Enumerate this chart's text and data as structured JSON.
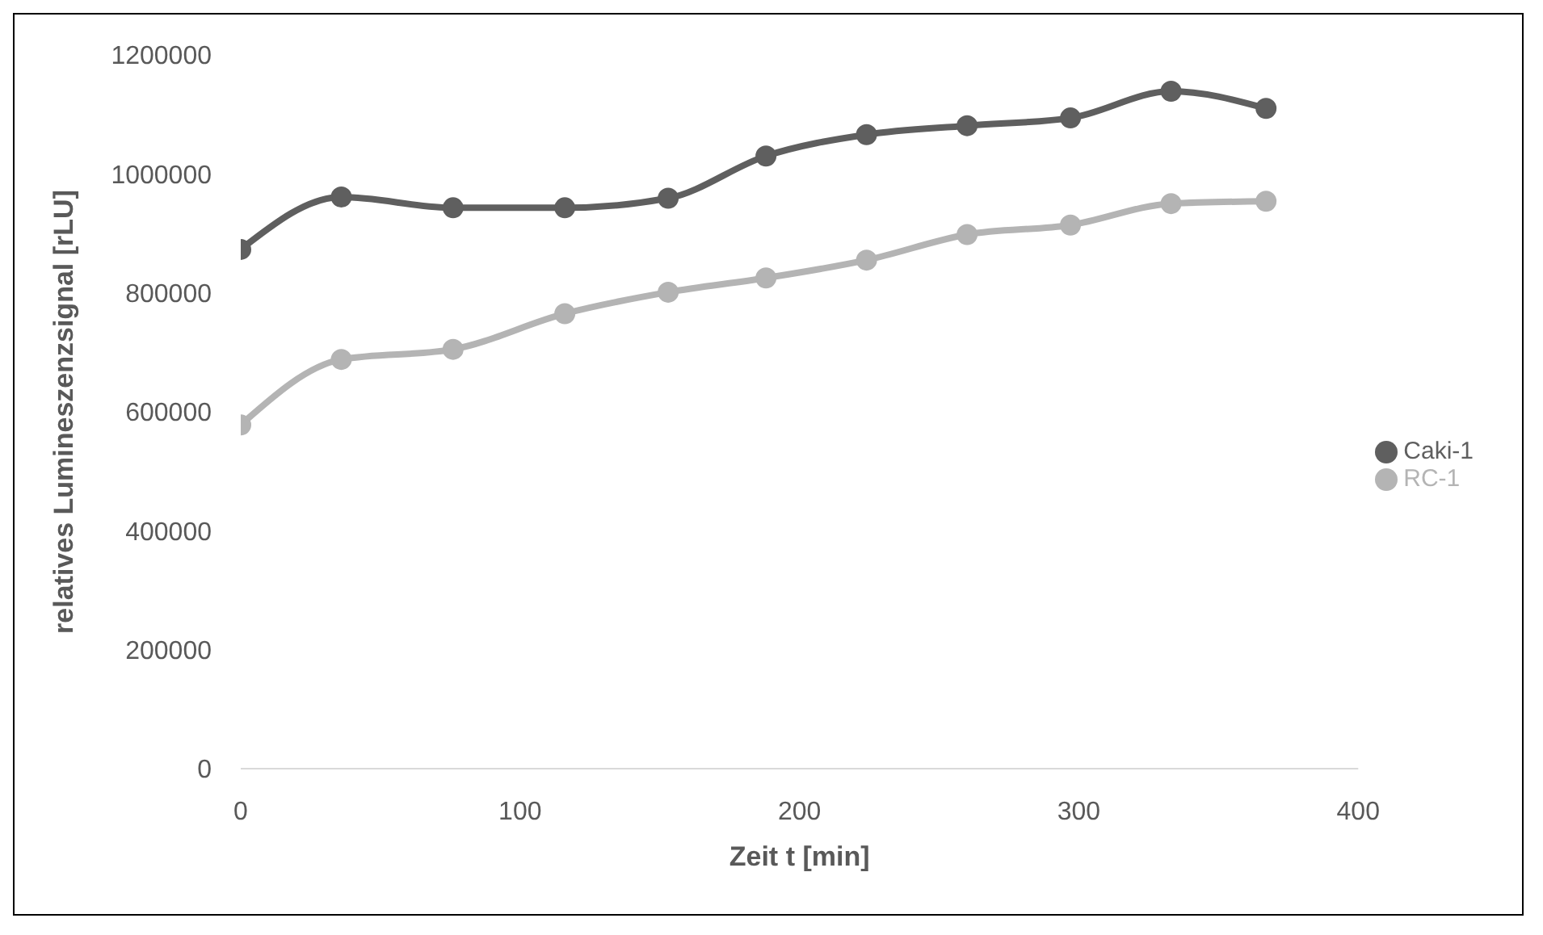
{
  "chart_data": {
    "type": "line",
    "xlabel": "Zeit t [min]",
    "ylabel": "relatives Lumineszenzsignal [rLU]",
    "x": [
      0,
      36,
      76,
      116,
      153,
      188,
      224,
      260,
      297,
      333,
      367
    ],
    "series": [
      {
        "name": "Caki-1",
        "color": "#5f5f5f",
        "values": [
          873000,
          961000,
          943000,
          943000,
          959000,
          1030000,
          1066000,
          1081000,
          1094000,
          1139000,
          1110000
        ]
      },
      {
        "name": "RC-1",
        "color": "#b4b4b4",
        "values": [
          578000,
          688000,
          705000,
          765000,
          801000,
          825000,
          855000,
          898000,
          914000,
          950000,
          954000
        ]
      }
    ],
    "xlim": [
      0,
      400
    ],
    "xticks": [
      0,
      100,
      200,
      300,
      400
    ],
    "ylim": [
      0,
      1200000
    ],
    "yticks": [
      0,
      200000,
      400000,
      600000,
      800000,
      1000000,
      1200000
    ],
    "grid": false,
    "legend": "right",
    "marker": "circle",
    "line_style": "solid"
  }
}
